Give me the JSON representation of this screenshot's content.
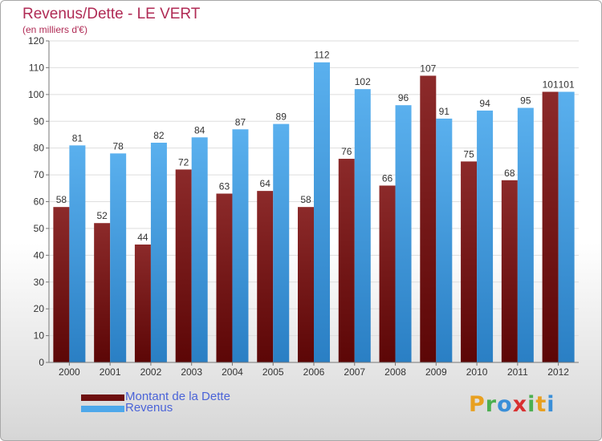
{
  "title": "Revenus/Dette - LE VERT",
  "subtitle": "(en milliers d'€)",
  "legend": {
    "items": [
      {
        "label": "Montant de la Dette",
        "color": "#7a1a1a"
      },
      {
        "label": "Revenus",
        "color": "#4ea8ea"
      }
    ]
  },
  "logo": {
    "letters": [
      "P",
      "r",
      "o",
      "x",
      "i",
      "t",
      "i"
    ],
    "colors": [
      "#e8a020",
      "#4caf50",
      "#3a8fd8",
      "#d83030",
      "#4caf50",
      "#e8a020",
      "#3a8fd8"
    ]
  },
  "colors": {
    "debt": "#7a1a1a",
    "revenue": "#4ea8ea",
    "title": "#b02b55",
    "legend_text": "#4a63d8"
  },
  "chart_data": {
    "type": "bar",
    "categories": [
      "2000",
      "2001",
      "2002",
      "2003",
      "2004",
      "2005",
      "2006",
      "2007",
      "2008",
      "2009",
      "2010",
      "2011",
      "2012"
    ],
    "series": [
      {
        "name": "Montant de la Dette",
        "values": [
          58,
          52,
          44,
          72,
          63,
          64,
          58,
          76,
          66,
          107,
          75,
          68,
          101
        ]
      },
      {
        "name": "Revenus",
        "values": [
          81,
          78,
          82,
          84,
          87,
          89,
          112,
          102,
          96,
          91,
          94,
          95,
          101
        ]
      }
    ],
    "ylim": [
      0,
      120
    ],
    "yticks": [
      0,
      10,
      20,
      30,
      40,
      50,
      60,
      70,
      80,
      90,
      100,
      110,
      120
    ],
    "grid": true,
    "legend_position": "bottom-left"
  }
}
